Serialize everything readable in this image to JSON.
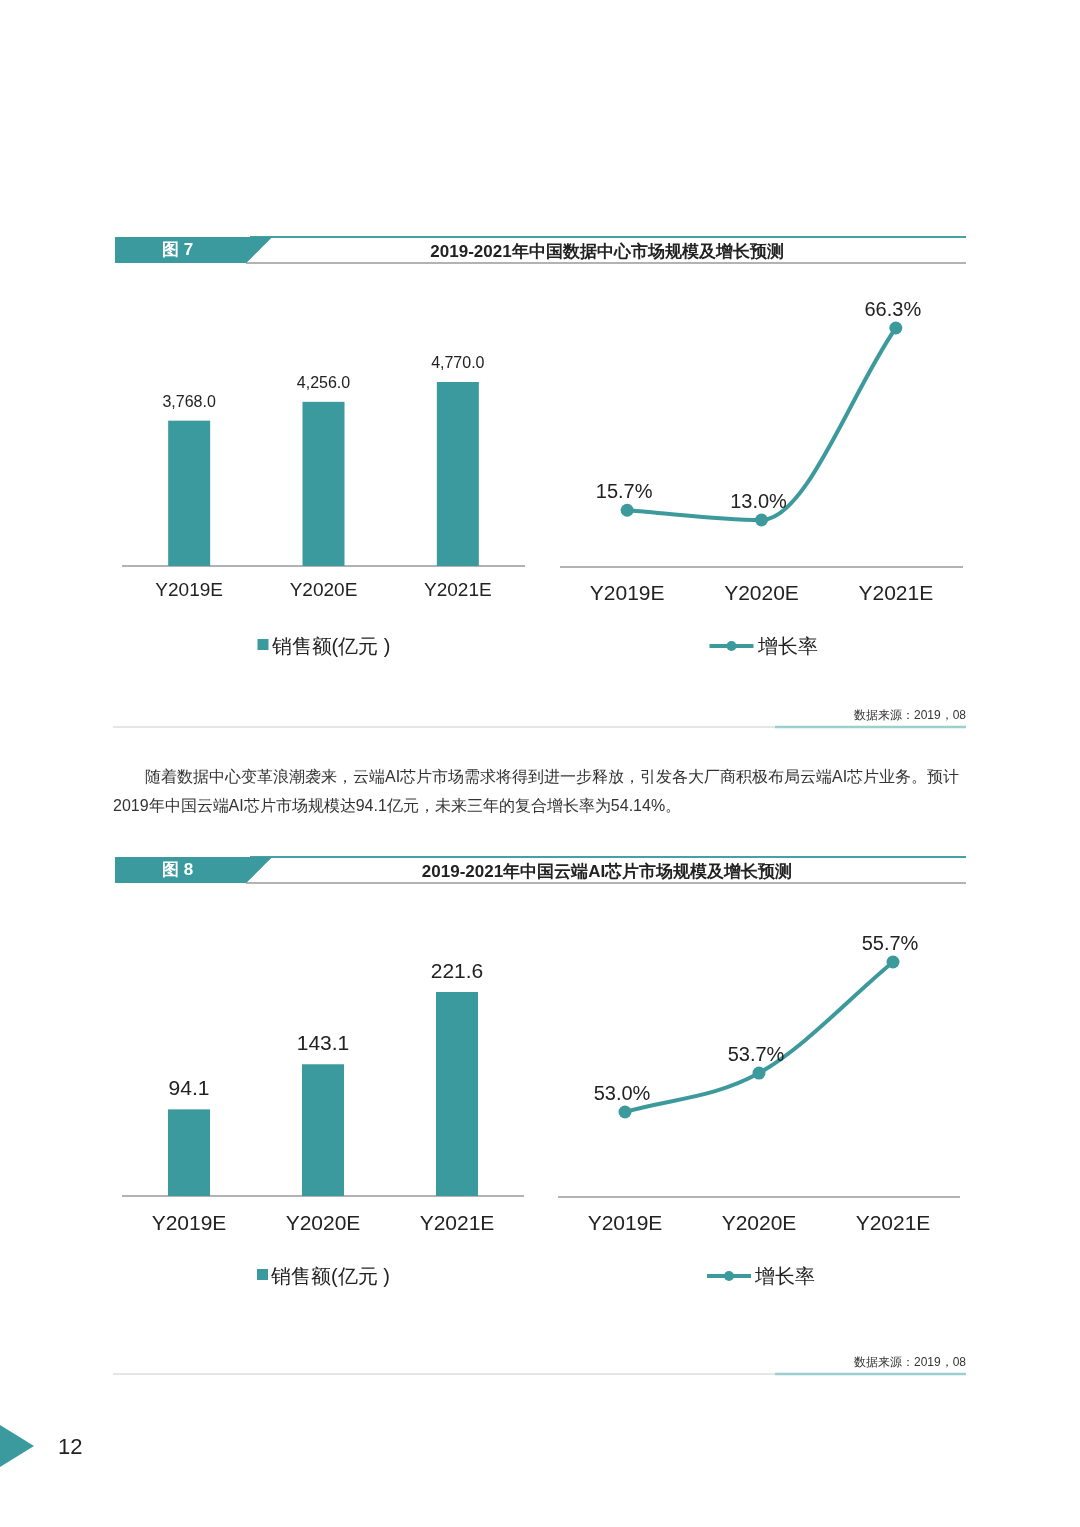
{
  "chart_data": [
    {
      "type": "bar",
      "title": "2019-2021年中国数据中心市场规模及增长预测",
      "subtitle": "图 7",
      "categories": [
        "Y2019E",
        "Y2020E",
        "Y2021E"
      ],
      "legend": "bottom",
      "series": [
        {
          "name": "销售额(亿元 )",
          "color": "#3a9a9e",
          "values": [
            3768.0,
            4256.0,
            4770.0
          ],
          "value_labels": [
            "3,768.0",
            "4,256.0",
            "4,770.0"
          ]
        }
      ]
    },
    {
      "type": "line",
      "categories": [
        "Y2019E",
        "Y2020E",
        "Y2021E"
      ],
      "legend": "bottom",
      "marker": "circle",
      "line_style": "solid",
      "series": [
        {
          "name": "增长率",
          "color": "#3d9a9c",
          "values": [
            15.7,
            13.0,
            66.3
          ],
          "value_labels": [
            "15.7%",
            "13.0%",
            "66.3%"
          ]
        }
      ],
      "annotations": [
        "数据来源：2019，08"
      ]
    },
    {
      "type": "bar",
      "title": "2019-2021年中国云端AI芯片市场规模及增长预测",
      "subtitle": "图 8",
      "categories": [
        "Y2019E",
        "Y2020E",
        "Y2021E"
      ],
      "legend": "bottom",
      "data_labels": true,
      "series": [
        {
          "name": "销售额(亿元 )",
          "color": "#3a9a9e",
          "values": [
            94.1,
            143.1,
            221.6
          ]
        }
      ],
      "annotations": [
        "随着数据中心变革浪潮袭来，云端AI芯片市场需求将得到进一步释放，引发各大厂商积极布局云端AI芯片业务。预计2019年中国云端AI芯片市场规模达94.1亿元，未来三年的复合增长率为54.14%。"
      ]
    },
    {
      "type": "line",
      "categories": [
        "Y2019E",
        "Y2020E",
        "Y2021E"
      ],
      "legend": "bottom",
      "marker": "circle",
      "line_style": "solid",
      "series": [
        {
          "name": "增长率",
          "color": "#3d9a9c",
          "values": [
            53.0,
            53.7,
            55.7
          ],
          "value_labels": [
            "53.0%",
            "53.7%",
            "55.7%"
          ]
        }
      ],
      "annotations": [
        "数据来源：2019，08",
        "12"
      ]
    }
  ]
}
